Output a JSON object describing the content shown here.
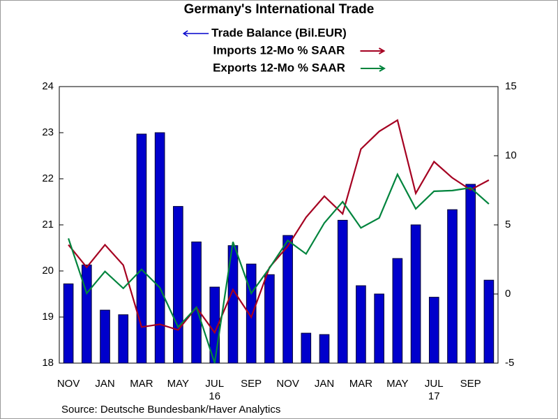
{
  "chart_data": {
    "type": "combo",
    "title": "Germany's International Trade",
    "source": "Source:  Deutsche Bundesbank/Haver Analytics",
    "categories": [
      "NOV",
      null,
      "JAN",
      null,
      "MAR",
      null,
      "MAY",
      null,
      "JUL",
      null,
      "SEP",
      null,
      "NOV",
      null,
      "JAN",
      null,
      "MAR",
      null,
      "MAY",
      null,
      "JUL",
      null,
      "SEP",
      null
    ],
    "x_sublabels": [
      null,
      null,
      null,
      null,
      null,
      null,
      null,
      null,
      "16",
      null,
      null,
      null,
      null,
      null,
      null,
      null,
      null,
      null,
      null,
      null,
      "17",
      null,
      null,
      null
    ],
    "ylim": [
      18,
      24
    ],
    "yticks": [
      18,
      19,
      20,
      21,
      22,
      23,
      24
    ],
    "y2lim": [
      -5,
      15
    ],
    "y2ticks": [
      -5,
      0,
      5,
      10,
      15
    ],
    "series": [
      {
        "name": "Trade Balance (Bil.EUR)",
        "type": "bar",
        "color": "#0000cc",
        "axis": "y",
        "values": [
          19.72,
          20.13,
          19.15,
          19.05,
          22.97,
          23.0,
          21.4,
          20.63,
          19.65,
          20.55,
          20.15,
          19.92,
          20.77,
          18.65,
          18.62,
          21.1,
          19.68,
          19.5,
          20.27,
          21.0,
          19.43,
          21.33,
          21.88,
          19.8
        ]
      },
      {
        "name": "Imports 12-Mo % SAAR",
        "type": "line",
        "color": "#a50021",
        "axis": "y2",
        "values": [
          3.56,
          1.93,
          3.56,
          2.09,
          -2.39,
          -2.19,
          -2.6,
          -0.97,
          -2.8,
          0.31,
          -1.68,
          1.93,
          3.46,
          5.55,
          7.07,
          5.8,
          10.48,
          11.76,
          12.57,
          7.28,
          9.57,
          8.4,
          7.53,
          8.24
        ]
      },
      {
        "name": "Exports 12-Mo % SAAR",
        "type": "line",
        "color": "#00843d",
        "axis": "y2",
        "values": [
          4.02,
          0.05,
          1.63,
          0.41,
          1.78,
          0.46,
          -2.39,
          -0.97,
          -4.99,
          3.77,
          0.05,
          1.88,
          3.87,
          2.9,
          5.14,
          6.67,
          4.78,
          5.5,
          8.65,
          6.16,
          7.43,
          7.48,
          7.68,
          6.51
        ]
      }
    ]
  }
}
